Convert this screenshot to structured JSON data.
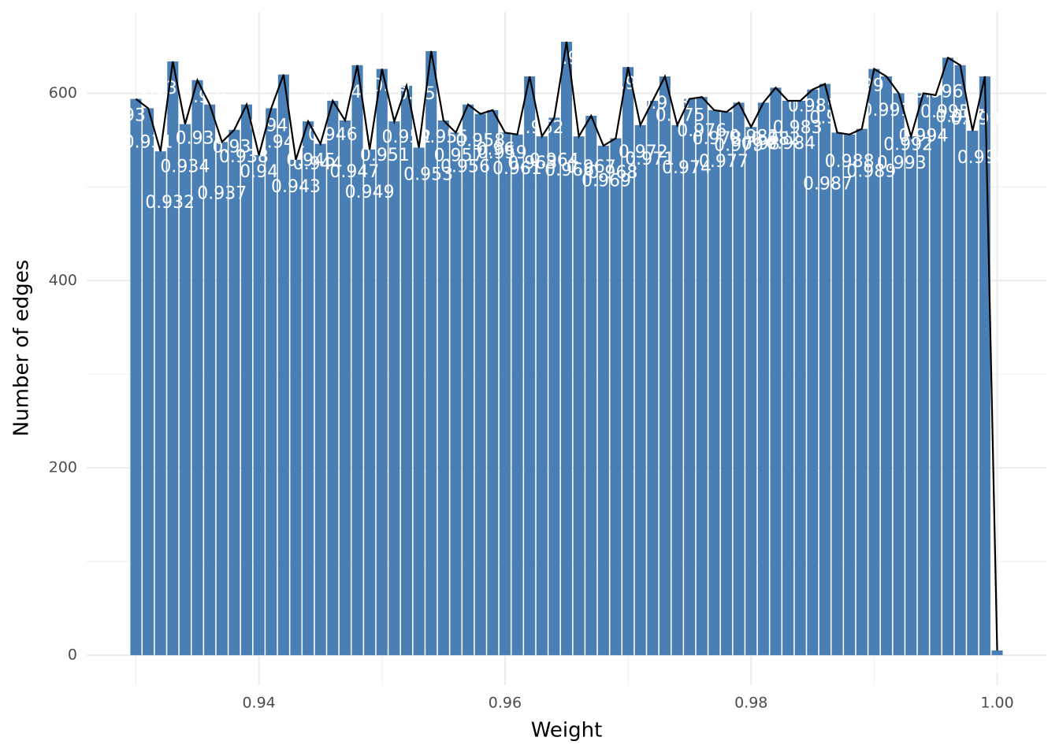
{
  "chart_data": {
    "type": "histogram",
    "x_label": "Weight",
    "y_label": "Number of edges",
    "x": [
      0.93,
      0.931,
      0.932,
      0.933,
      0.934,
      0.935,
      0.936,
      0.937,
      0.938,
      0.939,
      0.94,
      0.941,
      0.942,
      0.943,
      0.944,
      0.945,
      0.946,
      0.947,
      0.948,
      0.949,
      0.95,
      0.951,
      0.952,
      0.953,
      0.954,
      0.955,
      0.956,
      0.957,
      0.958,
      0.959,
      0.96,
      0.961,
      0.962,
      0.963,
      0.964,
      0.965,
      0.966,
      0.967,
      0.968,
      0.969,
      0.97,
      0.971,
      0.972,
      0.973,
      0.974,
      0.975,
      0.976,
      0.977,
      0.978,
      0.979,
      0.98,
      0.981,
      0.982,
      0.983,
      0.984,
      0.985,
      0.986,
      0.987,
      0.988,
      0.989,
      0.99,
      0.991,
      0.992,
      0.993,
      0.994,
      0.995,
      0.996,
      0.997,
      0.998,
      0.999,
      1
    ],
    "values": [
      594,
      584,
      538,
      634,
      567,
      614,
      588,
      548,
      561,
      588,
      534,
      584,
      620,
      529,
      570,
      546,
      592,
      571,
      630,
      540,
      626,
      570,
      608,
      542,
      645,
      571,
      558,
      588,
      578,
      582,
      558,
      556,
      618,
      554,
      574,
      655,
      554,
      576,
      544,
      552,
      628,
      566,
      592,
      618,
      566,
      594,
      596,
      582,
      580,
      590,
      564,
      590,
      606,
      592,
      592,
      604,
      610,
      558,
      556,
      562,
      626,
      618,
      600,
      554,
      600,
      598,
      638,
      630,
      560,
      618,
      5
    ],
    "bar_width": 0.0009,
    "color": "#4a7fb5",
    "line_color": "#000000",
    "label_color": "#ffffff",
    "xlim": [
      0.926,
      1.004
    ],
    "ylim": [
      -32,
      687
    ],
    "xticks": [
      0.94,
      0.96,
      0.98,
      {
        "value": 1,
        "label": "1.00"
      }
    ],
    "yticks": [
      0,
      200,
      400,
      600
    ],
    "x_minor_ticks": [
      0.93,
      0.95,
      0.97,
      0.99
    ],
    "y_minor_ticks": [
      100,
      300,
      500
    ],
    "grid": true
  }
}
